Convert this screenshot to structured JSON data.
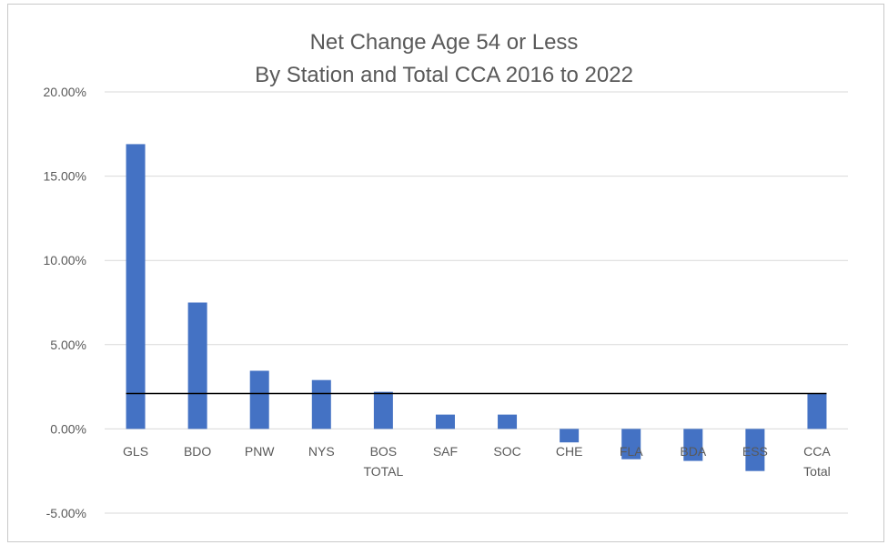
{
  "chart_data": {
    "type": "bar",
    "title": [
      "Net Change Age 54 or Less",
      "By Station  and Total CCA 2016 to 2022"
    ],
    "categories": [
      [
        "GLS"
      ],
      [
        "BDO"
      ],
      [
        "PNW"
      ],
      [
        "NYS"
      ],
      [
        "BOS",
        "TOTAL"
      ],
      [
        "SAF"
      ],
      [
        "SOC"
      ],
      [
        "CHE"
      ],
      [
        "FLA"
      ],
      [
        "BDA"
      ],
      [
        "ESS"
      ],
      [
        "CCA",
        "Total"
      ]
    ],
    "values": [
      16.9,
      7.5,
      3.45,
      2.9,
      2.2,
      0.85,
      0.85,
      -0.8,
      -1.8,
      -1.9,
      -2.5,
      2.1
    ],
    "reference_line": 2.1,
    "ylim": [
      -5,
      20
    ],
    "yticks": [
      20,
      15,
      10,
      5,
      0,
      -5
    ],
    "ytick_labels": [
      "20.00%",
      "15.00%",
      "10.00%",
      "5.00%",
      "0.00%",
      "-5.00%"
    ],
    "xlabel": "",
    "ylabel": "",
    "grid": true,
    "legend": "none",
    "colors": {
      "bar": "#4472C4",
      "grid": "#d9d9d9",
      "reference_line": "#000000",
      "text": "#595959"
    }
  }
}
